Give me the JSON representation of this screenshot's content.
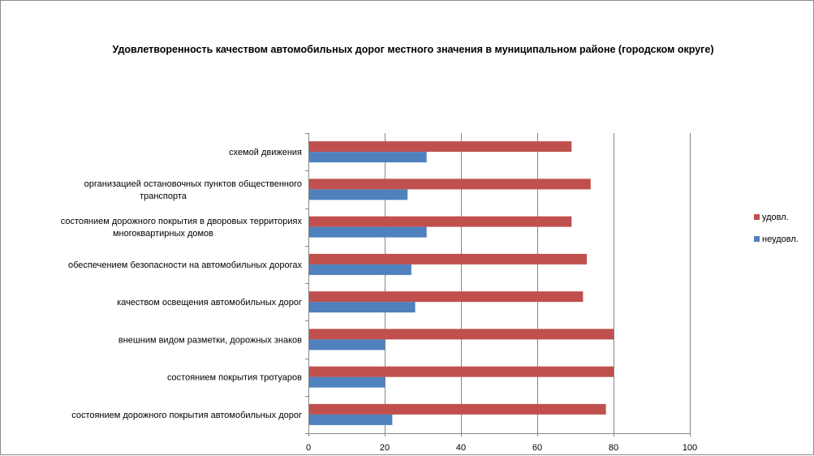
{
  "chart_data": {
    "type": "bar",
    "orientation": "horizontal",
    "title": "Удовлетворенность качеством автомобильных дорог местного значения в муниципальном районе (городском округе)",
    "categories": [
      "схемой движения",
      "организацией остановочных пунктов общественного транспорта",
      "состоянием дорожного покрытия в дворовых территориях многоквартирных домов",
      "обеспечением  безопасности на автомобильных дорогах",
      "качеством освещения  автомобильных дорог",
      "внешним  видом разметки, дорожных знаков",
      "состоянием покрытия тротуаров",
      "состоянием дорожного покрытия автомобильных дорог"
    ],
    "category_lines": [
      [
        "схемой движения"
      ],
      [
        "организацией остановочных пунктов общественного",
        "транспорта"
      ],
      [
        "состоянием дорожного покрытия в дворовых территориях",
        "многоквартирных домов"
      ],
      [
        "обеспечением  безопасности на автомобильных дорогах"
      ],
      [
        "качеством освещения  автомобильных дорог"
      ],
      [
        "внешним  видом разметки, дорожных знаков"
      ],
      [
        "состоянием покрытия тротуаров"
      ],
      [
        "состоянием дорожного покрытия автомобильных дорог"
      ]
    ],
    "series": [
      {
        "name": "удовл.",
        "color": "#c0504d",
        "values": [
          69,
          74,
          69,
          73,
          72,
          80,
          80,
          78
        ]
      },
      {
        "name": "неудовл.",
        "color": "#4f81bd",
        "values": [
          31,
          26,
          31,
          27,
          28,
          20,
          20,
          22
        ]
      }
    ],
    "xlim": [
      0,
      100
    ],
    "xticks": [
      0,
      20,
      40,
      60,
      80,
      100
    ],
    "grid": true,
    "legend_position": "right"
  }
}
